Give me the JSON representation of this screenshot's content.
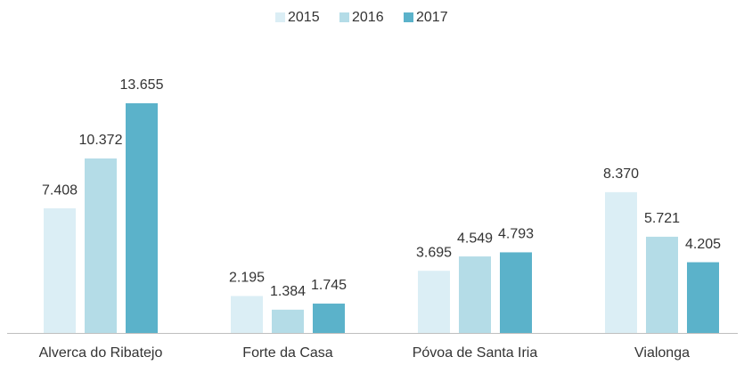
{
  "chart_data": {
    "type": "bar",
    "categories": [
      "Alverca do Ribatejo",
      "Forte da Casa",
      "Póvoa de Santa Iria",
      "Vialonga"
    ],
    "series": [
      {
        "name": "2015",
        "color": "#dbeef5",
        "values": [
          7408,
          2195,
          3695,
          8370
        ],
        "value_labels": [
          "7.408",
          "2.195",
          "3.695",
          "8.370"
        ]
      },
      {
        "name": "2016",
        "color": "#b4dce7",
        "values": [
          10372,
          1384,
          4549,
          5721
        ],
        "value_labels": [
          "10.372",
          "1.384",
          "4.549",
          "5.721"
        ]
      },
      {
        "name": "2017",
        "color": "#5bb2ca",
        "values": [
          13655,
          1745,
          4793,
          4205
        ],
        "value_labels": [
          "13.655",
          "1.745",
          "4.793",
          "4.205"
        ]
      }
    ],
    "legend": "top"
  }
}
